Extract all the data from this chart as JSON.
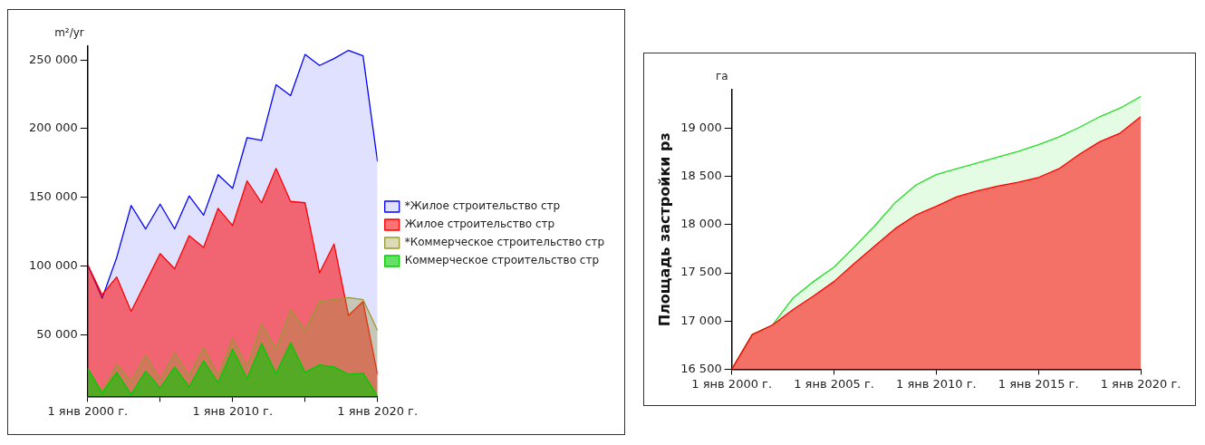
{
  "chart_data": [
    {
      "type": "area",
      "annotations": [
        "m²/yr"
      ],
      "x": [
        "2000",
        "2001",
        "2002",
        "2003",
        "2004",
        "2005",
        "2006",
        "2007",
        "2008",
        "2009",
        "2010",
        "2011",
        "2012",
        "2013",
        "2014",
        "2015",
        "2016",
        "2017",
        "2018",
        "2019",
        "2020"
      ],
      "series": [
        {
          "name": "*Жилое строительство стр",
          "color": "#0000ff",
          "values": [
            101000,
            76500,
            106000,
            144000,
            127000,
            145000,
            127000,
            151000,
            137000,
            166500,
            156500,
            193500,
            191500,
            232000,
            224000,
            254000,
            246000,
            251000,
            257000,
            253000,
            176000
          ]
        },
        {
          "name": "Жилое строительство стр",
          "color": "#ff0000",
          "values": [
            101000,
            79000,
            92000,
            67000,
            88000,
            109000,
            98000,
            122000,
            113500,
            142000,
            129500,
            162000,
            146000,
            171000,
            147000,
            146000,
            95000,
            116000,
            64000,
            74000,
            21000
          ]
        },
        {
          "name": "*Коммерческое строительство стр",
          "color": "#999933",
          "values": [
            24500,
            8500,
            28000,
            16000,
            35000,
            17000,
            36500,
            20000,
            40500,
            20000,
            47000,
            26500,
            57500,
            39500,
            68000,
            53000,
            74000,
            75500,
            77000,
            75500,
            53000
          ]
        },
        {
          "name": "Коммерческое строительство стр",
          "color": "#00cc00",
          "values": [
            25500,
            7500,
            22500,
            6500,
            23500,
            11000,
            26500,
            12000,
            31000,
            15000,
            39500,
            18000,
            43500,
            21500,
            44000,
            22500,
            28000,
            26500,
            21000,
            22000,
            5500
          ]
        }
      ],
      "xlim": [
        "2000",
        "2020"
      ],
      "xticks": [
        {
          "value": "2000",
          "label": "1 янв 2000 г."
        },
        {
          "value": "2005",
          "label": null
        },
        {
          "value": "2010",
          "label": "1 янв 2010 г."
        },
        {
          "value": "2015",
          "label": null
        },
        {
          "value": "2020",
          "label": "1 янв 2020 г."
        }
      ],
      "ylim": [
        5000,
        260000
      ],
      "yticks": [
        {
          "value": 50000,
          "label": "50 000"
        },
        {
          "value": 100000,
          "label": "100 000"
        },
        {
          "value": 150000,
          "label": "150 000"
        },
        {
          "value": 200000,
          "label": "200 000"
        },
        {
          "value": 250000,
          "label": "250 000"
        }
      ],
      "legend": "right",
      "marker": "none"
    },
    {
      "type": "area",
      "ylabel": "Площадь застройки рз",
      "annotations": [
        "га"
      ],
      "x": [
        "2000",
        "2001",
        "2002",
        "2003",
        "2004",
        "2005",
        "2006",
        "2007",
        "2008",
        "2009",
        "2010",
        "2011",
        "2012",
        "2013",
        "2014",
        "2015",
        "2016",
        "2017",
        "2018",
        "2019",
        "2020"
      ],
      "series": [
        {
          "color": "#22dd22",
          "values": [
            16500,
            16860,
            16960,
            17240,
            17410,
            17560,
            17770,
            17990,
            18230,
            18410,
            18520,
            18580,
            18640,
            18700,
            18760,
            18830,
            18910,
            19010,
            19120,
            19210,
            19330
          ]
        },
        {
          "color": "#ff0000",
          "values": [
            16500,
            16860,
            16960,
            17120,
            17260,
            17410,
            17600,
            17780,
            17960,
            18100,
            18190,
            18290,
            18350,
            18400,
            18440,
            18490,
            18580,
            18730,
            18860,
            18950,
            19120
          ]
        }
      ],
      "xlim": [
        "2000",
        "2020"
      ],
      "xticks": [
        {
          "value": "2000",
          "label": "1 янв 2000 г."
        },
        {
          "value": "2005",
          "label": "1 янв 2005 г."
        },
        {
          "value": "2010",
          "label": "1 янв 2010 г."
        },
        {
          "value": "2015",
          "label": "1 янв 2015 г."
        },
        {
          "value": "2020",
          "label": "1 янв 2020 г."
        }
      ],
      "ylim": [
        16500,
        19400
      ],
      "yticks": [
        {
          "value": 16500,
          "label": "16 500"
        },
        {
          "value": 17000,
          "label": "17 000"
        },
        {
          "value": 17500,
          "label": "17 500"
        },
        {
          "value": 18000,
          "label": "18 000"
        },
        {
          "value": 18500,
          "label": "18 500"
        },
        {
          "value": 19000,
          "label": "19 000"
        }
      ],
      "marker": "none"
    }
  ]
}
